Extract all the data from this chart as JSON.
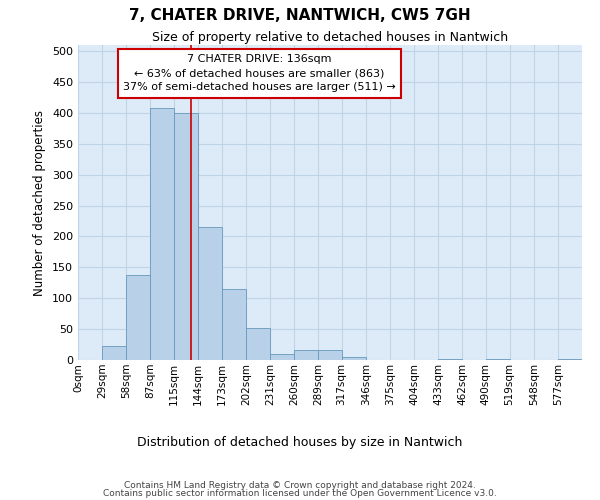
{
  "title": "7, CHATER DRIVE, NANTWICH, CW5 7GH",
  "subtitle": "Size of property relative to detached houses in Nantwich",
  "xlabel": "Distribution of detached houses by size in Nantwich",
  "ylabel": "Number of detached properties",
  "bin_edges": [
    0,
    29,
    58,
    87,
    115,
    144,
    173,
    202,
    231,
    260,
    289,
    317,
    346,
    375,
    404,
    433,
    462,
    490,
    519,
    548,
    577,
    606
  ],
  "bin_labels": [
    "0sqm",
    "29sqm",
    "58sqm",
    "87sqm",
    "115sqm",
    "144sqm",
    "173sqm",
    "202sqm",
    "231sqm",
    "260sqm",
    "289sqm",
    "317sqm",
    "346sqm",
    "375sqm",
    "404sqm",
    "433sqm",
    "462sqm",
    "490sqm",
    "519sqm",
    "548sqm",
    "577sqm"
  ],
  "bar_heights": [
    0,
    22,
    137,
    408,
    400,
    216,
    115,
    52,
    10,
    16,
    16,
    5,
    0,
    0,
    0,
    2,
    0,
    2,
    0,
    0,
    2
  ],
  "bar_color": "#b8d0e8",
  "bar_edge_color": "#6699bb",
  "grid_color": "#c0d4e8",
  "bg_color": "#ddeaf7",
  "property_size": 136,
  "property_line_color": "#cc0000",
  "annotation_line1": "7 CHATER DRIVE: 136sqm",
  "annotation_line2": "← 63% of detached houses are smaller (863)",
  "annotation_line3": "37% of semi-detached houses are larger (511) →",
  "annotation_box_color": "#ffffff",
  "annotation_box_edge": "#cc0000",
  "ylim": [
    0,
    510
  ],
  "yticks": [
    0,
    50,
    100,
    150,
    200,
    250,
    300,
    350,
    400,
    450,
    500
  ],
  "footer_line1": "Contains HM Land Registry data © Crown copyright and database right 2024.",
  "footer_line2": "Contains public sector information licensed under the Open Government Licence v3.0."
}
